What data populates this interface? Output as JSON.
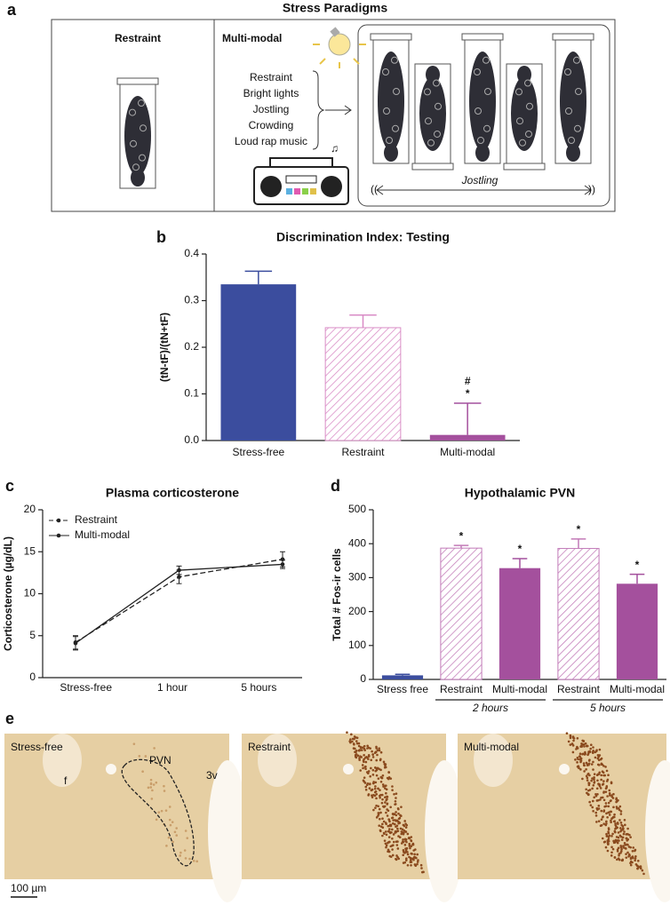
{
  "panel_labels": [
    "a",
    "b",
    "c",
    "d",
    "e"
  ],
  "diagram": {
    "title": "Stress Paradigms",
    "restraint_label": "Restraint",
    "multimodal_label": "Multi-modal",
    "stressors": [
      "Restraint",
      "Bright lights",
      "Jostling",
      "Crowding",
      "Loud rap music"
    ],
    "jostling_label": "Jostling"
  },
  "chart_data": [
    {
      "type": "bar",
      "title": "Discrimination Index: Testing",
      "y_label": "(tN-tF)/(tN+tF)",
      "categories": [
        "Stress-free",
        "Restraint",
        "Multi-modal"
      ],
      "values": [
        0.335,
        0.242,
        0.012
      ],
      "errors": [
        0.028,
        0.027,
        0.068
      ],
      "colors": [
        "#3b4d9e",
        "#d98cc6",
        "#a4509d"
      ],
      "hatched": [
        false,
        true,
        false
      ],
      "annotations": [
        {
          "text": "#",
          "category": 2
        },
        {
          "text": "*",
          "category": 2
        }
      ],
      "ylim": [
        0,
        0.4
      ],
      "yticks": [
        {
          "value": 0,
          "label": "0.0"
        },
        0.1,
        0.2,
        0.3,
        0.4
      ]
    },
    {
      "type": "line",
      "title": "Plasma corticosterone",
      "y_label": "Corticosterone (µg/dL)",
      "categories": [
        "Stress-free",
        "1 hour",
        "5 hours"
      ],
      "series": [
        {
          "name": "Restraint",
          "color": "#222222",
          "dashed": true,
          "values": [
            4.2,
            12.0,
            14.1
          ],
          "errors": [
            0.8,
            0.8,
            0.9
          ]
        },
        {
          "name": "Multi-modal",
          "color": "#222222",
          "dashed": false,
          "values": [
            4.1,
            12.8,
            13.5
          ],
          "errors": [
            0.8,
            0.5,
            0.5
          ]
        }
      ],
      "ylim": [
        0,
        20
      ],
      "yticks": [
        0,
        5,
        10,
        15,
        20
      ]
    },
    {
      "type": "bar",
      "title": "Hypothalamic PVN",
      "y_label": "Total # Fos-ir cells",
      "categories": [
        "Stress free",
        "Restraint",
        "Multi-modal",
        "Restraint",
        "Multi-modal"
      ],
      "values": [
        12,
        387,
        328,
        386,
        282
      ],
      "errors": [
        3,
        8,
        28,
        28,
        28
      ],
      "colors": [
        "#3b4d9e",
        "#c27ab8",
        "#a4509d",
        "#c27ab8",
        "#a4509d"
      ],
      "hatched": [
        false,
        true,
        false,
        true,
        false
      ],
      "annotations": [
        {
          "text": "*",
          "category": 1
        },
        {
          "text": "*",
          "category": 2
        },
        {
          "text": "*",
          "category": 3
        },
        {
          "text": "*",
          "category": 4
        }
      ],
      "groups": [
        {
          "label": "2 hours",
          "categories": [
            1,
            2
          ]
        },
        {
          "label": "5 hours",
          "categories": [
            3,
            4
          ]
        }
      ],
      "ylim": [
        0,
        500
      ],
      "yticks": [
        0,
        100,
        200,
        300,
        400,
        500
      ]
    }
  ],
  "micrographs": {
    "panels": [
      {
        "label": "Stress-free"
      },
      {
        "label": "Restraint"
      },
      {
        "label": "Multi-modal"
      }
    ],
    "annotations": [
      "f",
      "PVN",
      "3v"
    ],
    "scale_bar": "100 µm"
  }
}
